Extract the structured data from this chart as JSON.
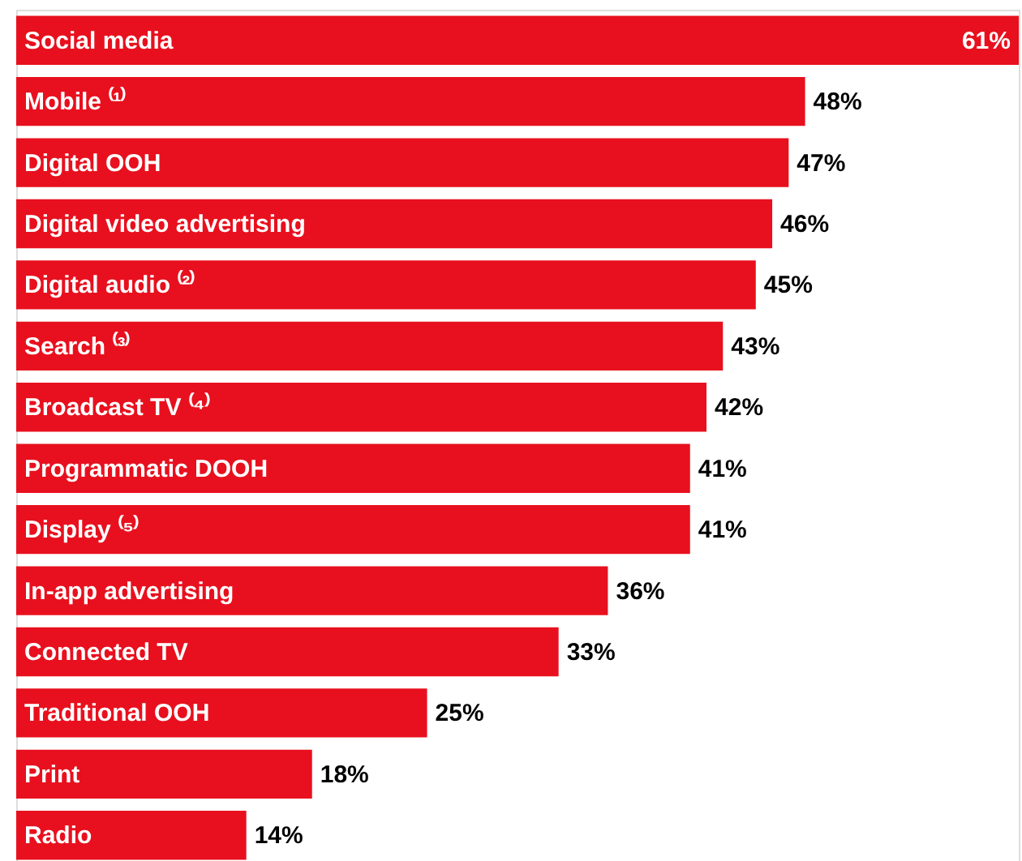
{
  "chart_data": {
    "type": "bar",
    "orientation": "horizontal",
    "categories": [
      "Social media",
      "Mobile ⁽¹⁾",
      "Digital OOH",
      "Digital video advertising",
      "Digital audio ⁽²⁾",
      "Search ⁽³⁾",
      "Broadcast TV ⁽⁴⁾",
      "Programmatic DOOH",
      "Display ⁽⁵⁾",
      "In-app advertising",
      "Connected TV",
      "Traditional OOH",
      "Print",
      "Radio"
    ],
    "values": [
      61,
      48,
      47,
      46,
      45,
      43,
      42,
      41,
      41,
      36,
      33,
      25,
      18,
      14
    ],
    "value_labels": [
      "61%",
      "48%",
      "47%",
      "46%",
      "45%",
      "43%",
      "42%",
      "41%",
      "41%",
      "36%",
      "33%",
      "25%",
      "18%",
      "14%"
    ],
    "color": "#e8101e"
  }
}
